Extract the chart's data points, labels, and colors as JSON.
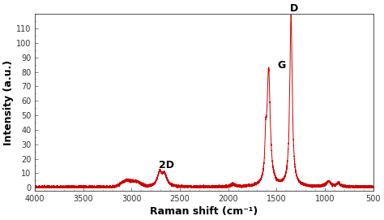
{
  "title": "",
  "xlabel": "Raman shift (cm⁻¹)",
  "ylabel": "Intensity (a.u.)",
  "xlim": [
    4000,
    500
  ],
  "ylim": [
    -2,
    120
  ],
  "yticks": [
    0,
    10,
    20,
    30,
    40,
    50,
    60,
    70,
    80,
    90,
    100,
    110
  ],
  "xticks": [
    4000,
    3500,
    3000,
    2500,
    2000,
    1500,
    1000,
    500
  ],
  "line_color": "#cc0000",
  "line_width": 0.7,
  "background_color": "#ffffff",
  "peak_D_x": 1350,
  "peak_D_y": 118,
  "peak_G_x": 1582,
  "peak_G_y": 80,
  "peak_2D_x": 2680,
  "peak_2D_y": 11,
  "label_fontsize": 9,
  "axis_label_fontsize": 9,
  "tick_fontsize": 7
}
